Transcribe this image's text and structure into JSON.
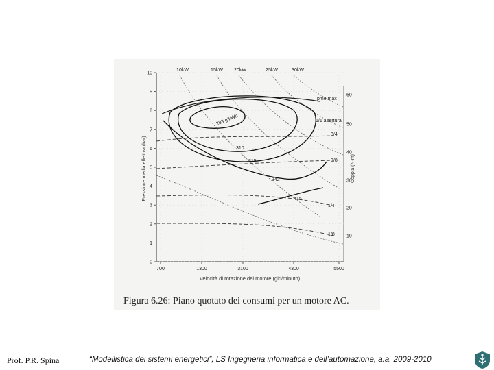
{
  "chart_data": {
    "type": "line",
    "title": "",
    "caption": "Figura 6.26: Piano quotato dei consumi per un motore AC.",
    "xlabel": "Velocità di rotazione del motore (giri/minuto)",
    "ylabel": "Pressione media effettiva (bar)",
    "y2label": "Coppia (N·m)",
    "x_ticks": [
      "700",
      "1300",
      "3100",
      "4300",
      "5500"
    ],
    "y_ticks": [
      "0",
      "1",
      "2",
      "3",
      "4",
      "5",
      "6",
      "7",
      "8",
      "9",
      "10"
    ],
    "y2_ticks": [
      "10",
      "20",
      "30",
      "40",
      "50",
      "60"
    ],
    "power_labels": [
      "10kW",
      "15kW",
      "20kW",
      "25kW",
      "30kW"
    ],
    "curve_labels": {
      "pme_max": "pme max",
      "apertura": "1/1 apertura",
      "isolines": [
        "283 g/kWh",
        "310",
        "315",
        "342",
        "415"
      ],
      "opening_marks": [
        "3/4",
        "3/8",
        "1/4",
        "1/8"
      ]
    },
    "grid": true,
    "legend": "none",
    "xlim": [
      700,
      5500
    ],
    "ylim": [
      0,
      10
    ]
  },
  "footer": {
    "author": "Prof. P.R. Spina",
    "course": "“Modellistica dei sistemi energetici”, LS Ingegneria informatica e dell’automazione, a.a. 2009-2010"
  }
}
